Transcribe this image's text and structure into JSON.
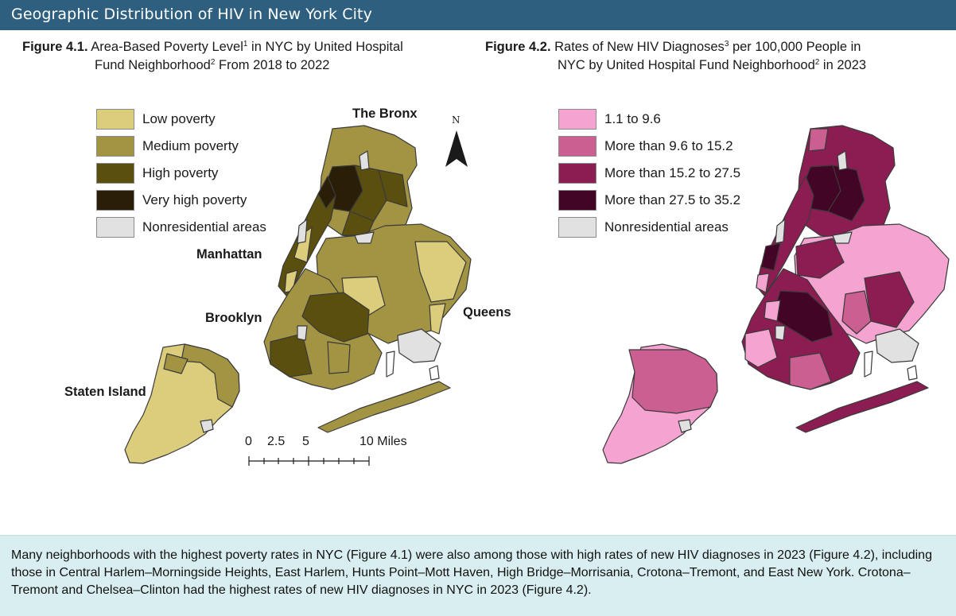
{
  "header": {
    "title": "Geographic Distribution of HIV in New York City"
  },
  "figure1": {
    "label": "Figure 4.1.",
    "title_line1": "Area-Based Poverty Level",
    "sup1": "1",
    "title_line1_end": " in NYC by United Hospital",
    "title_line2": "Fund Neighborhood",
    "sup2": "2",
    "title_line2_end": " From 2018 to 2022",
    "legend": [
      {
        "label": "Low poverty",
        "color": "#dccd7c"
      },
      {
        "label": "Medium poverty",
        "color": "#a39444"
      },
      {
        "label": "High poverty",
        "color": "#5a4f0e"
      },
      {
        "label": "Very high poverty",
        "color": "#2b1e06"
      },
      {
        "label": "Nonresidential areas",
        "color": "#e1e1e1"
      }
    ],
    "boroughs": {
      "bronx": "The Bronx",
      "manhattan": "Manhattan",
      "brooklyn": "Brooklyn",
      "queens": "Queens",
      "staten_island": "Staten Island"
    },
    "north_arrow": "N",
    "scale": {
      "t0": "0",
      "t1": "2.5",
      "t2": "5",
      "t3": "10 Miles"
    }
  },
  "figure2": {
    "label": "Figure 4.2.",
    "title_line1": "Rates of New HIV Diagnoses",
    "sup1": "3",
    "title_line1_end": " per 100,000 People in",
    "title_line2": "NYC by United Hospital Fund Neighborhood",
    "sup2": "2",
    "title_line2_end": " in 2023",
    "legend": [
      {
        "label": "1.1 to 9.6",
        "color": "#f5a3d0"
      },
      {
        "label": "More than 9.6 to 15.2",
        "color": "#cc5f91"
      },
      {
        "label": "More than 15.2 to 27.5",
        "color": "#8c1d52"
      },
      {
        "label": "More than 27.5 to 35.2",
        "color": "#420525"
      },
      {
        "label": "Nonresidential areas",
        "color": "#e1e1e1"
      }
    ]
  },
  "summary": {
    "text": "Many neighborhoods with the highest poverty rates in NYC (Figure 4.1) were also among those with high rates of new HIV diagnoses in 2023 (Figure 4.2), including those in Central Harlem–Morningside Heights, East Harlem, Hunts Point–Mott Haven, High Bridge–Morrisania, Crotona–Tremont, and East New York. Crotona–Tremont and Chelsea–Clinton had the highest rates of new HIV diagnoses in NYC in 2023 (Figure 4.2)."
  }
}
